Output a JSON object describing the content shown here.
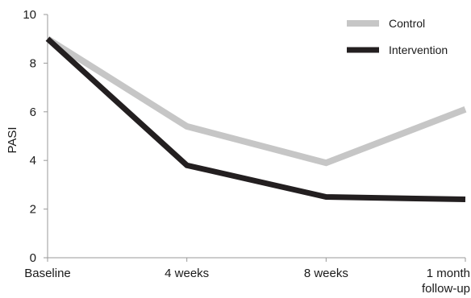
{
  "chart_data": {
    "type": "line",
    "categories": [
      "Baseline",
      "4 weeks",
      "8 weeks",
      "1 month follow-up"
    ],
    "category_label_lines": [
      [
        "Baseline"
      ],
      [
        "4 weeks"
      ],
      [
        "8 weeks"
      ],
      [
        "1 month",
        "follow-up"
      ]
    ],
    "series": [
      {
        "name": "Control",
        "values": [
          9.0,
          5.4,
          3.9,
          6.1
        ],
        "color": "#c6c6c6"
      },
      {
        "name": "Intervention",
        "values": [
          9.0,
          3.8,
          2.5,
          2.4
        ],
        "color": "#231f20"
      }
    ],
    "ylabel": "PASI",
    "xlabel": "",
    "title": "",
    "ylim": [
      0,
      10
    ],
    "yticks": [
      0,
      2,
      4,
      6,
      8,
      10
    ],
    "grid": false,
    "legend_position": "top-right"
  }
}
